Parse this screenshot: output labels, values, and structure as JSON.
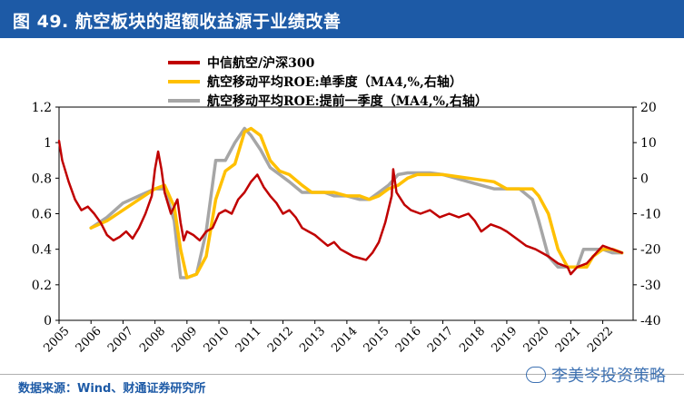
{
  "header": {
    "title": "图 49. 航空板块的超额收益源于业绩改善"
  },
  "source": "数据来源：Wind、财通证券研究所",
  "watermark": "李美岑投资策略",
  "colors": {
    "title_bg": "#1d5aa6",
    "red": "#c00000",
    "yellow": "#ffc000",
    "gray": "#a6a6a6",
    "text": "#000000"
  },
  "chart_data": {
    "type": "line",
    "x_labels": [
      "2005",
      "2006",
      "2007",
      "2008",
      "2009",
      "2010",
      "2011",
      "2012",
      "2013",
      "2014",
      "2015",
      "2016",
      "2017",
      "2018",
      "2019",
      "2020",
      "2021",
      "2022"
    ],
    "left_axis": {
      "ylim": [
        0,
        1.2
      ],
      "ticks": [
        "0",
        "0.2",
        "0.4",
        "0.6",
        "0.8",
        "1",
        "1.2"
      ]
    },
    "right_axis": {
      "ylim": [
        -40,
        20
      ],
      "ticks": [
        "-40",
        "-30",
        "-20",
        "-10",
        "0",
        "10",
        "20"
      ]
    },
    "series": [
      {
        "name": "中信航空/沪深300",
        "axis": "left",
        "color": "#c00000",
        "points": [
          [
            2005.0,
            1.01
          ],
          [
            2005.1,
            0.9
          ],
          [
            2005.3,
            0.78
          ],
          [
            2005.5,
            0.68
          ],
          [
            2005.7,
            0.62
          ],
          [
            2005.9,
            0.64
          ],
          [
            2006.1,
            0.6
          ],
          [
            2006.3,
            0.55
          ],
          [
            2006.5,
            0.48
          ],
          [
            2006.7,
            0.45
          ],
          [
            2006.9,
            0.47
          ],
          [
            2007.1,
            0.5
          ],
          [
            2007.3,
            0.46
          ],
          [
            2007.5,
            0.52
          ],
          [
            2007.7,
            0.6
          ],
          [
            2007.9,
            0.7
          ],
          [
            2008.0,
            0.85
          ],
          [
            2008.1,
            0.95
          ],
          [
            2008.2,
            0.85
          ],
          [
            2008.3,
            0.72
          ],
          [
            2008.5,
            0.6
          ],
          [
            2008.7,
            0.68
          ],
          [
            2008.8,
            0.55
          ],
          [
            2008.9,
            0.45
          ],
          [
            2009.0,
            0.5
          ],
          [
            2009.2,
            0.48
          ],
          [
            2009.4,
            0.45
          ],
          [
            2009.6,
            0.5
          ],
          [
            2009.8,
            0.52
          ],
          [
            2010.0,
            0.6
          ],
          [
            2010.2,
            0.62
          ],
          [
            2010.4,
            0.6
          ],
          [
            2010.6,
            0.68
          ],
          [
            2010.8,
            0.72
          ],
          [
            2011.0,
            0.78
          ],
          [
            2011.2,
            0.82
          ],
          [
            2011.4,
            0.75
          ],
          [
            2011.6,
            0.7
          ],
          [
            2011.8,
            0.66
          ],
          [
            2012.0,
            0.6
          ],
          [
            2012.2,
            0.62
          ],
          [
            2012.4,
            0.58
          ],
          [
            2012.6,
            0.52
          ],
          [
            2012.8,
            0.5
          ],
          [
            2013.0,
            0.48
          ],
          [
            2013.2,
            0.45
          ],
          [
            2013.4,
            0.42
          ],
          [
            2013.6,
            0.44
          ],
          [
            2013.8,
            0.4
          ],
          [
            2014.0,
            0.38
          ],
          [
            2014.2,
            0.36
          ],
          [
            2014.4,
            0.35
          ],
          [
            2014.6,
            0.34
          ],
          [
            2014.8,
            0.38
          ],
          [
            2015.0,
            0.44
          ],
          [
            2015.2,
            0.55
          ],
          [
            2015.4,
            0.7
          ],
          [
            2015.45,
            0.85
          ],
          [
            2015.55,
            0.72
          ],
          [
            2015.8,
            0.65
          ],
          [
            2016.0,
            0.62
          ],
          [
            2016.3,
            0.6
          ],
          [
            2016.6,
            0.62
          ],
          [
            2016.9,
            0.58
          ],
          [
            2017.2,
            0.6
          ],
          [
            2017.5,
            0.58
          ],
          [
            2017.8,
            0.6
          ],
          [
            2018.0,
            0.56
          ],
          [
            2018.2,
            0.5
          ],
          [
            2018.5,
            0.54
          ],
          [
            2018.8,
            0.52
          ],
          [
            2019.0,
            0.5
          ],
          [
            2019.3,
            0.46
          ],
          [
            2019.6,
            0.42
          ],
          [
            2019.9,
            0.4
          ],
          [
            2020.1,
            0.38
          ],
          [
            2020.3,
            0.36
          ],
          [
            2020.6,
            0.32
          ],
          [
            2020.9,
            0.3
          ],
          [
            2021.0,
            0.26
          ],
          [
            2021.2,
            0.3
          ],
          [
            2021.5,
            0.32
          ],
          [
            2021.8,
            0.38
          ],
          [
            2022.0,
            0.42
          ],
          [
            2022.3,
            0.4
          ],
          [
            2022.6,
            0.38
          ]
        ]
      },
      {
        "name": "航空移动平均ROE:单季度（MA4,%,右轴）",
        "axis": "right",
        "color": "#ffc000",
        "points": [
          [
            2006.0,
            -14
          ],
          [
            2006.5,
            -12
          ],
          [
            2007.0,
            -9
          ],
          [
            2007.5,
            -6
          ],
          [
            2008.0,
            -3
          ],
          [
            2008.3,
            -2
          ],
          [
            2008.6,
            -8
          ],
          [
            2008.8,
            -20
          ],
          [
            2009.0,
            -28
          ],
          [
            2009.3,
            -27
          ],
          [
            2009.6,
            -22
          ],
          [
            2009.9,
            -6
          ],
          [
            2010.2,
            2
          ],
          [
            2010.5,
            4
          ],
          [
            2010.8,
            13
          ],
          [
            2011.0,
            14
          ],
          [
            2011.3,
            12
          ],
          [
            2011.6,
            5
          ],
          [
            2011.9,
            2
          ],
          [
            2012.2,
            1
          ],
          [
            2012.6,
            -2
          ],
          [
            2012.9,
            -4
          ],
          [
            2013.3,
            -4
          ],
          [
            2013.6,
            -4
          ],
          [
            2014.0,
            -5
          ],
          [
            2014.4,
            -5
          ],
          [
            2014.7,
            -6
          ],
          [
            2015.0,
            -5
          ],
          [
            2015.3,
            -3
          ],
          [
            2015.6,
            -2
          ],
          [
            2015.9,
            0
          ],
          [
            2016.2,
            1
          ],
          [
            2016.6,
            1
          ],
          [
            2017.0,
            1
          ],
          [
            2017.4,
            0.5
          ],
          [
            2017.8,
            0
          ],
          [
            2018.2,
            -0.5
          ],
          [
            2018.6,
            -1
          ],
          [
            2019.0,
            -3
          ],
          [
            2019.4,
            -3
          ],
          [
            2019.8,
            -3
          ],
          [
            2020.0,
            -5
          ],
          [
            2020.3,
            -10
          ],
          [
            2020.6,
            -20
          ],
          [
            2020.9,
            -25
          ],
          [
            2021.2,
            -25
          ],
          [
            2021.5,
            -25
          ],
          [
            2021.7,
            -22
          ],
          [
            2022.0,
            -20
          ],
          [
            2022.3,
            -20
          ],
          [
            2022.6,
            -21
          ]
        ]
      },
      {
        "name": "航空移动平均ROE:提前一季度（MA4,%,右轴）",
        "axis": "right",
        "color": "#a6a6a6",
        "points": [
          [
            2006.0,
            -14
          ],
          [
            2006.5,
            -11
          ],
          [
            2007.0,
            -7
          ],
          [
            2007.5,
            -5
          ],
          [
            2008.0,
            -3
          ],
          [
            2008.3,
            -3
          ],
          [
            2008.6,
            -12
          ],
          [
            2008.8,
            -28
          ],
          [
            2009.0,
            -28
          ],
          [
            2009.3,
            -27
          ],
          [
            2009.6,
            -15
          ],
          [
            2009.9,
            5
          ],
          [
            2010.2,
            5
          ],
          [
            2010.5,
            10
          ],
          [
            2010.8,
            14
          ],
          [
            2011.0,
            12
          ],
          [
            2011.3,
            8
          ],
          [
            2011.6,
            3
          ],
          [
            2011.9,
            1
          ],
          [
            2012.2,
            -1
          ],
          [
            2012.6,
            -4
          ],
          [
            2012.9,
            -4
          ],
          [
            2013.3,
            -4
          ],
          [
            2013.6,
            -5
          ],
          [
            2014.0,
            -5
          ],
          [
            2014.4,
            -6
          ],
          [
            2014.7,
            -6
          ],
          [
            2015.0,
            -4
          ],
          [
            2015.3,
            -2
          ],
          [
            2015.6,
            1
          ],
          [
            2015.9,
            1.5
          ],
          [
            2016.2,
            1.5
          ],
          [
            2016.6,
            1.5
          ],
          [
            2017.0,
            1
          ],
          [
            2017.4,
            0
          ],
          [
            2017.8,
            -1
          ],
          [
            2018.2,
            -2
          ],
          [
            2018.6,
            -3
          ],
          [
            2019.0,
            -3
          ],
          [
            2019.4,
            -3
          ],
          [
            2019.8,
            -6
          ],
          [
            2020.0,
            -12
          ],
          [
            2020.3,
            -22
          ],
          [
            2020.6,
            -25
          ],
          [
            2020.9,
            -25
          ],
          [
            2021.2,
            -25
          ],
          [
            2021.4,
            -20
          ],
          [
            2021.7,
            -20
          ],
          [
            2022.0,
            -20
          ],
          [
            2022.3,
            -21
          ],
          [
            2022.6,
            -21
          ]
        ]
      }
    ]
  }
}
